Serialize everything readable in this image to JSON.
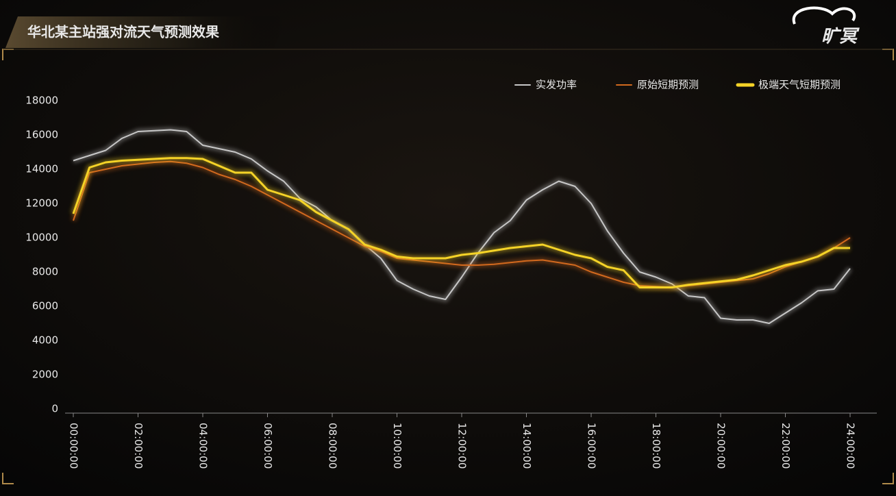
{
  "brand": {
    "logo": "旷冥"
  },
  "chart_data": {
    "type": "line",
    "title": "华北某主站强对流天气预测效果",
    "x": [
      0,
      0.5,
      1,
      1.5,
      2,
      2.5,
      3,
      3.5,
      4,
      4.5,
      5,
      5.5,
      6,
      6.5,
      7,
      7.5,
      8,
      8.5,
      9,
      9.5,
      10,
      10.5,
      11,
      11.5,
      12,
      12.5,
      13,
      13.5,
      14,
      14.5,
      15,
      15.5,
      16,
      16.5,
      17,
      17.5,
      18,
      18.5,
      19,
      19.5,
      20,
      20.5,
      21,
      21.5,
      22,
      22.5,
      23,
      23.5,
      24
    ],
    "series": [
      {
        "name": "实发功率",
        "color": "#c8c8c8",
        "values": [
          14500,
          14800,
          15100,
          15800,
          16200,
          16250,
          16300,
          16200,
          15400,
          15200,
          15000,
          14600,
          13900,
          13300,
          12300,
          11800,
          11000,
          10500,
          9600,
          8800,
          7500,
          7000,
          6600,
          6400,
          7700,
          9100,
          10300,
          11000,
          12200,
          12800,
          13300,
          13000,
          12000,
          10400,
          9100,
          8000,
          7700,
          7300,
          6600,
          6500,
          5300,
          5200,
          5200,
          5000,
          5600,
          6200,
          6900,
          7000,
          8200
        ]
      },
      {
        "name": "原始短期预测",
        "color": "#d2691e",
        "values": [
          11000,
          13800,
          14000,
          14200,
          14300,
          14400,
          14450,
          14350,
          14100,
          13700,
          13400,
          13000,
          12500,
          12000,
          11500,
          11000,
          10500,
          10000,
          9500,
          9200,
          8800,
          8700,
          8600,
          8500,
          8400,
          8400,
          8450,
          8550,
          8650,
          8700,
          8550,
          8400,
          8000,
          7700,
          7400,
          7200,
          7150,
          7100,
          7200,
          7300,
          7400,
          7500,
          7600,
          7900,
          8300,
          8600,
          8900,
          9400,
          10000
        ]
      },
      {
        "name": "极端天气短期预测",
        "color": "#f5d327",
        "values": [
          11400,
          14100,
          14400,
          14500,
          14550,
          14600,
          14650,
          14650,
          14600,
          14200,
          13800,
          13800,
          12800,
          12500,
          12200,
          11500,
          11000,
          10500,
          9600,
          9300,
          8900,
          8800,
          8800,
          8800,
          9000,
          9100,
          9250,
          9400,
          9500,
          9600,
          9300,
          9000,
          8800,
          8300,
          8100,
          7100,
          7100,
          7100,
          7250,
          7350,
          7450,
          7550,
          7800,
          8100,
          8400,
          8600,
          8900,
          9400,
          9400
        ]
      }
    ],
    "xlim": [
      0,
      24
    ],
    "xticks": [
      {
        "value": 0,
        "label": "00:00:00"
      },
      {
        "value": 2,
        "label": "02:00:00"
      },
      {
        "value": 4,
        "label": "04:00:00"
      },
      {
        "value": 6,
        "label": "06:00:00"
      },
      {
        "value": 8,
        "label": "08:00:00"
      },
      {
        "value": 10,
        "label": "10:00:00"
      },
      {
        "value": 12,
        "label": "12:00:00"
      },
      {
        "value": 14,
        "label": "14:00:00"
      },
      {
        "value": 16,
        "label": "16:00:00"
      },
      {
        "value": 18,
        "label": "18:00:00"
      },
      {
        "value": 20,
        "label": "20:00:00"
      },
      {
        "value": 22,
        "label": "22:00:00"
      },
      {
        "value": 24,
        "label": "24:00:00"
      }
    ],
    "ylim": [
      0,
      18000
    ],
    "yticks": [
      0,
      2000,
      4000,
      6000,
      8000,
      10000,
      12000,
      14000,
      16000,
      18000
    ],
    "legend": "top-right"
  }
}
